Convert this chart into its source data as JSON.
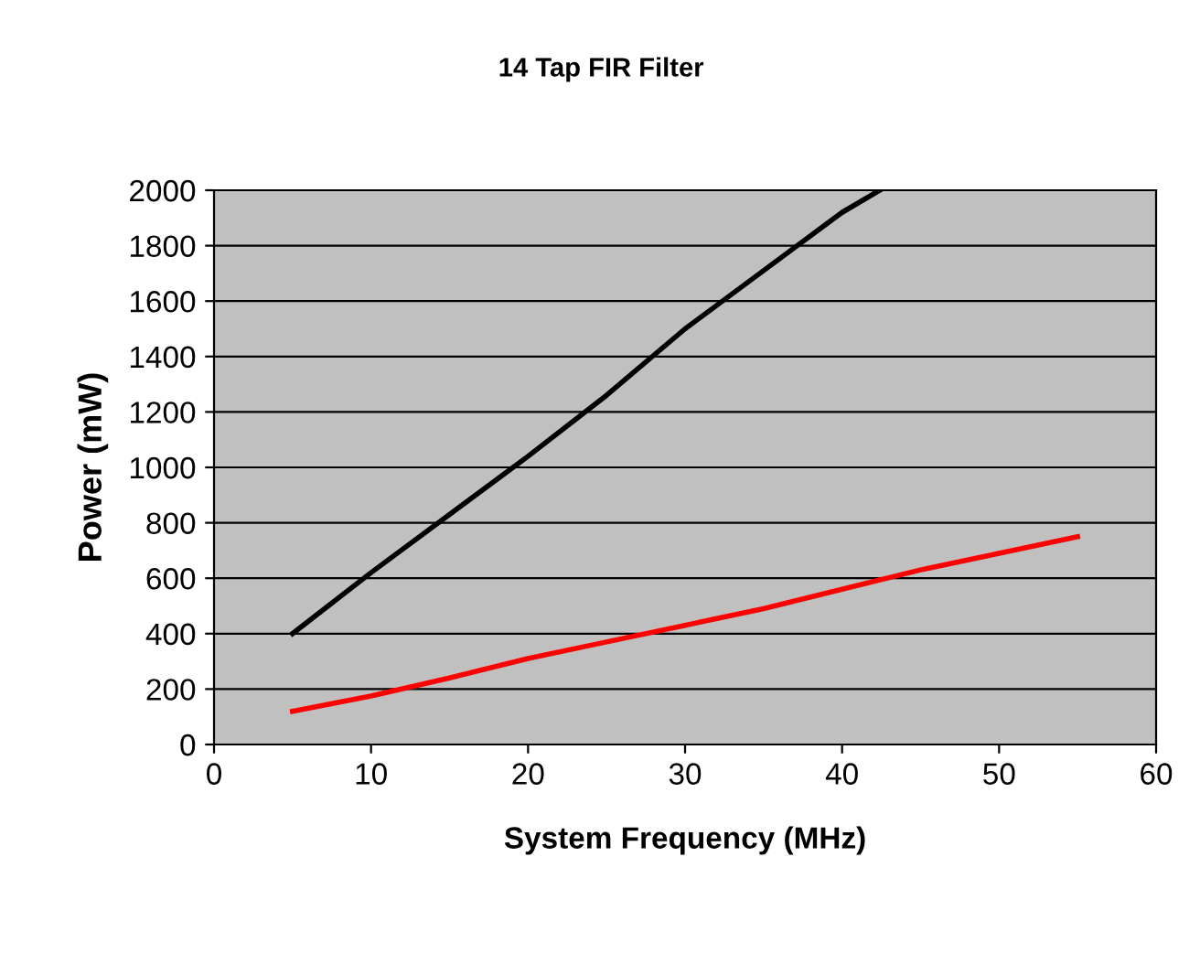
{
  "chart_data": {
    "type": "line",
    "title": "14 Tap FIR Filter",
    "xlabel": "System Frequency (MHz)",
    "ylabel": "Power (mW)",
    "xlim": [
      0,
      60
    ],
    "xticks": [
      0,
      10,
      20,
      30,
      40,
      50,
      60
    ],
    "ylim": [
      0,
      2000
    ],
    "yticks": [
      0,
      200,
      400,
      600,
      800,
      1000,
      1200,
      1400,
      1600,
      1800,
      2000
    ],
    "grid": "y",
    "legend": false,
    "marker": "none",
    "line_style": "solid",
    "series": [
      {
        "color": "#000000",
        "x": [
          5,
          10,
          15,
          20,
          25,
          30,
          35,
          40,
          42.4
        ],
        "values": [
          400,
          620,
          830,
          1040,
          1260,
          1500,
          1710,
          1920,
          2000
        ]
      },
      {
        "color": "#ff0000",
        "x": [
          5,
          10,
          15,
          20,
          25,
          30,
          35,
          40,
          45,
          50,
          55
        ],
        "values": [
          120,
          175,
          240,
          310,
          370,
          430,
          490,
          560,
          630,
          690,
          750
        ]
      }
    ]
  }
}
